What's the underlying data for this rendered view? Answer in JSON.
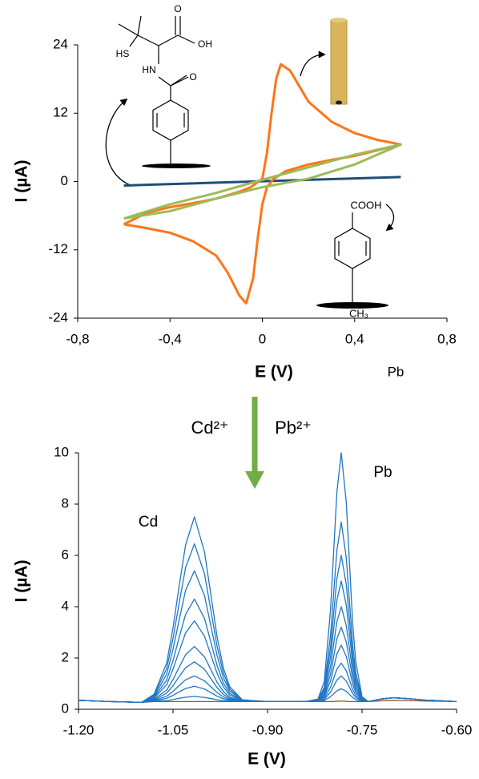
{
  "chart_data": [
    {
      "type": "line",
      "xlabel": "E (V)",
      "ylabel": "I (µA)",
      "xlim": [
        -0.8,
        0.8
      ],
      "xticks": [
        {
          "value": -0.8,
          "label": "-0,8"
        },
        {
          "value": -0.4,
          "label": "-0,4"
        },
        0,
        {
          "value": 0.4,
          "label": "0,4"
        },
        {
          "value": 0.8,
          "label": "0,8"
        }
      ],
      "ylim": [
        -24,
        24
      ],
      "yticks": [
        -24,
        -12,
        0,
        12,
        24
      ],
      "grid": false,
      "series": [
        {
          "color": "#1f4e79",
          "x": [
            -0.6,
            0.6
          ],
          "values": [
            -0.7,
            0.8
          ]
        },
        {
          "color": "#ff7518",
          "x": [
            -0.6,
            -0.5,
            -0.4,
            -0.3,
            -0.2,
            -0.1,
            -0.05,
            0,
            0.02,
            0.04,
            0.06,
            0.08,
            0.12,
            0.2,
            0.3,
            0.4,
            0.5,
            0.6,
            0.5,
            0.4,
            0.3,
            0.2,
            0.1,
            0.05,
            0.02,
            0,
            -0.02,
            -0.04,
            -0.07,
            -0.1,
            -0.15,
            -0.2,
            -0.3,
            -0.4,
            -0.5,
            -0.6
          ],
          "values": [
            -7.5,
            -5.5,
            -4.5,
            -3.8,
            -3,
            -1.8,
            -1,
            0.5,
            5,
            12,
            18,
            20.6,
            19.5,
            14,
            10.5,
            8.5,
            7.3,
            6.5,
            5.5,
            4.5,
            3.8,
            3,
            1.8,
            0.5,
            -1,
            -4,
            -10,
            -17,
            -21.4,
            -20,
            -16,
            -13,
            -10.5,
            -9,
            -8.2,
            -7.5
          ]
        },
        {
          "color": "#9bbb59",
          "x": [
            -0.6,
            -0.4,
            -0.2,
            0,
            0.2,
            0.4,
            0.6,
            0.4,
            0.2,
            0,
            -0.2,
            -0.4,
            -0.6
          ],
          "values": [
            -6.5,
            -4,
            -2,
            0.3,
            2.5,
            4.7,
            6.5,
            3,
            0.5,
            -1,
            -3,
            -5.2,
            -6.5
          ]
        }
      ],
      "annotations": [
        {
          "text": "O"
        },
        {
          "text": "OH"
        },
        {
          "text": "HS"
        },
        {
          "text": "HN"
        },
        {
          "text": "O"
        },
        {
          "text": "COOH"
        },
        {
          "text": "CH₃"
        },
        {
          "text": "Pb"
        }
      ]
    },
    {
      "type": "line",
      "xlabel": "E (V)",
      "ylabel": "I (µA)",
      "xlim": [
        -1.2,
        -0.6
      ],
      "xticks": [
        {
          "value": -1.2,
          "label": "-1.20"
        },
        {
          "value": -1.05,
          "label": "-1.05"
        },
        {
          "value": -0.9,
          "label": "-0.90"
        },
        {
          "value": -0.75,
          "label": "-0.75"
        },
        {
          "value": -0.6,
          "label": "-0.60"
        }
      ],
      "ylim": [
        0,
        10
      ],
      "yticks": [
        0,
        2,
        4,
        6,
        8,
        10
      ],
      "grid": false,
      "x": [
        -1.2,
        -1.15,
        -1.1,
        -1.08,
        -1.06,
        -1.05,
        -1.04,
        -1.03,
        -1.016,
        -1.0,
        -0.99,
        -0.98,
        -0.97,
        -0.96,
        -0.94,
        -0.9,
        -0.86,
        -0.84,
        -0.82,
        -0.81,
        -0.8,
        -0.79,
        -0.783,
        -0.775,
        -0.77,
        -0.765,
        -0.76,
        -0.75,
        -0.74,
        -0.72,
        -0.7,
        -0.68,
        -0.65,
        -0.6
      ],
      "series": [
        {
          "color": "#a0522d",
          "values": [
            0.35,
            0.3,
            0.27,
            0.3,
            0.3,
            0.3,
            0.3,
            0.3,
            0.3,
            0.3,
            0.3,
            0.3,
            0.3,
            0.3,
            0.3,
            0.3,
            0.3,
            0.3,
            0.3,
            0.3,
            0.3,
            0.31,
            0.32,
            0.31,
            0.3,
            0.3,
            0.3,
            0.3,
            0.3,
            0.33,
            0.35,
            0.34,
            0.32,
            0.3
          ]
        },
        {
          "color": "#1f77c4",
          "values": [
            0.35,
            0.3,
            0.27,
            0.31,
            0.34,
            0.38,
            0.43,
            0.47,
            0.5,
            0.46,
            0.42,
            0.37,
            0.34,
            0.32,
            0.3,
            0.3,
            0.3,
            0.3,
            0.31,
            0.34,
            0.49,
            0.72,
            0.8,
            0.7,
            0.58,
            0.46,
            0.38,
            0.31,
            0.3,
            0.4,
            0.45,
            0.42,
            0.36,
            0.3
          ]
        },
        {
          "color": "#1f77c4",
          "values": [
            0.35,
            0.3,
            0.27,
            0.32,
            0.43,
            0.54,
            0.68,
            0.81,
            0.9,
            0.79,
            0.65,
            0.51,
            0.41,
            0.35,
            0.31,
            0.3,
            0.3,
            0.3,
            0.31,
            0.38,
            0.67,
            1.14,
            1.3,
            1.1,
            0.86,
            0.62,
            0.46,
            0.32,
            0.3,
            0.4,
            0.45,
            0.42,
            0.36,
            0.3
          ]
        },
        {
          "color": "#1f77c4",
          "values": [
            0.35,
            0.3,
            0.27,
            0.34,
            0.51,
            0.7,
            0.93,
            1.15,
            1.3,
            1.11,
            0.88,
            0.65,
            0.48,
            0.38,
            0.31,
            0.3,
            0.3,
            0.3,
            0.32,
            0.42,
            0.86,
            1.56,
            1.8,
            1.5,
            1.14,
            0.78,
            0.54,
            0.33,
            0.3,
            0.4,
            0.45,
            0.42,
            0.36,
            0.3
          ]
        },
        {
          "color": "#1f77c4",
          "values": [
            0.35,
            0.3,
            0.27,
            0.36,
            0.63,
            0.92,
            1.28,
            1.62,
            1.85,
            1.56,
            1.2,
            0.84,
            0.58,
            0.42,
            0.32,
            0.3,
            0.3,
            0.3,
            0.32,
            0.48,
            1.11,
            2.15,
            2.5,
            2.06,
            1.53,
            1.0,
            0.65,
            0.34,
            0.3,
            0.4,
            0.45,
            0.42,
            0.36,
            0.3
          ]
        },
        {
          "color": "#1f77c4",
          "values": [
            0.35,
            0.3,
            0.27,
            0.39,
            0.75,
            1.16,
            1.65,
            2.13,
            2.45,
            2.04,
            1.55,
            1.05,
            0.69,
            0.47,
            0.32,
            0.3,
            0.3,
            0.3,
            0.33,
            0.53,
            1.37,
            2.74,
            3.2,
            2.62,
            1.92,
            1.23,
            0.76,
            0.36,
            0.3,
            0.4,
            0.45,
            0.42,
            0.36,
            0.3
          ]
        },
        {
          "color": "#1f77c4",
          "values": [
            0.35,
            0.3,
            0.27,
            0.43,
            0.96,
            1.56,
            2.28,
            2.98,
            3.45,
            2.85,
            2.13,
            1.4,
            0.87,
            0.55,
            0.33,
            0.3,
            0.3,
            0.3,
            0.34,
            0.6,
            1.67,
            3.41,
            4.0,
            3.26,
            2.37,
            1.48,
            0.89,
            0.37,
            0.3,
            0.4,
            0.45,
            0.42,
            0.36,
            0.3
          ]
        },
        {
          "color": "#1f77c4",
          "values": [
            0.35,
            0.3,
            0.27,
            0.46,
            1.14,
            1.9,
            2.82,
            3.7,
            4.3,
            3.54,
            2.62,
            1.7,
            1.02,
            0.62,
            0.34,
            0.3,
            0.3,
            0.3,
            0.35,
            0.68,
            2.04,
            4.25,
            5.0,
            4.06,
            2.93,
            1.8,
            1.05,
            0.39,
            0.3,
            0.4,
            0.45,
            0.42,
            0.36,
            0.3
          ]
        },
        {
          "color": "#1f77c4",
          "values": [
            0.35,
            0.3,
            0.27,
            0.5,
            1.37,
            2.34,
            3.51,
            4.64,
            5.4,
            4.43,
            3.26,
            2.09,
            1.22,
            0.71,
            0.35,
            0.3,
            0.3,
            0.3,
            0.36,
            0.76,
            2.41,
            5.09,
            6.0,
            4.86,
            3.49,
            2.12,
            1.21,
            0.41,
            0.3,
            0.4,
            0.45,
            0.42,
            0.36,
            0.3
          ]
        },
        {
          "color": "#1f77c4",
          "values": [
            0.35,
            0.3,
            0.27,
            0.55,
            1.59,
            2.76,
            4.17,
            5.53,
            6.45,
            5.28,
            3.87,
            2.45,
            1.41,
            0.79,
            0.36,
            0.3,
            0.3,
            0.3,
            0.37,
            0.86,
            2.89,
            6.18,
            7.3,
            5.9,
            4.22,
            2.54,
            1.42,
            0.44,
            0.3,
            0.4,
            0.45,
            0.42,
            0.36,
            0.3
          ]
        },
        {
          "color": "#1f77c4",
          "values": [
            0.35,
            0.3,
            0.27,
            0.59,
            1.81,
            3.18,
            4.84,
            6.42,
            7.5,
            6.13,
            4.48,
            2.82,
            1.6,
            0.88,
            0.37,
            0.3,
            0.3,
            0.3,
            0.4,
            1.08,
            3.89,
            8.45,
            10.0,
            8.06,
            5.73,
            3.4,
            1.85,
            0.49,
            0.3,
            0.4,
            0.45,
            0.42,
            0.36,
            0.3
          ]
        }
      ],
      "annotations": [
        {
          "text": "Cd",
          "color": "#c00000"
        },
        {
          "text": "Pb",
          "color": "#c00000"
        },
        {
          "text": "Cd²⁺",
          "color": "#70ad47"
        },
        {
          "text": "Pb²⁺",
          "color": "#70ad47"
        }
      ]
    }
  ]
}
